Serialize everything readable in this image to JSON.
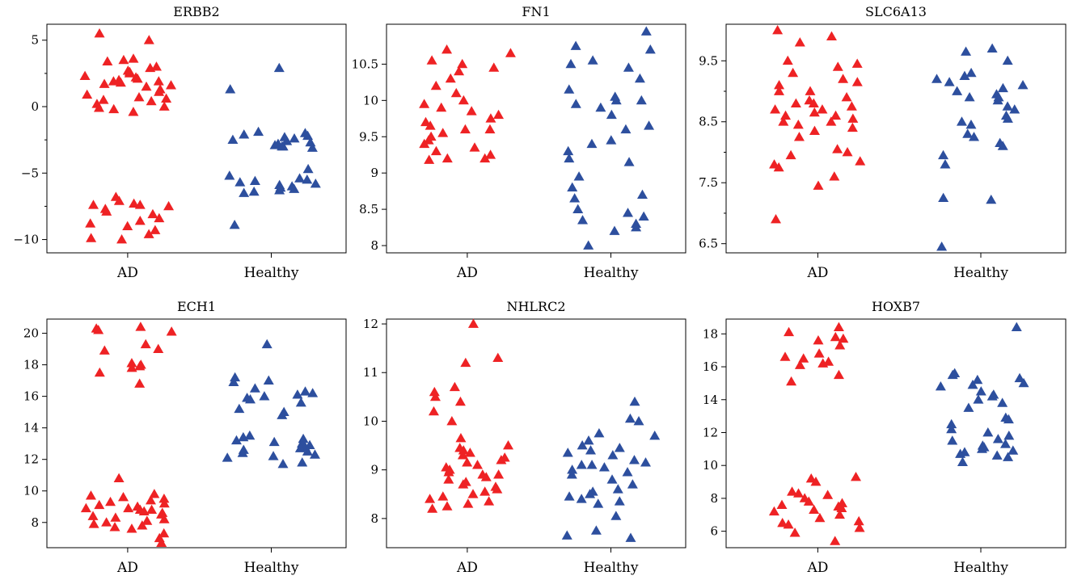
{
  "colors": {
    "AD": "#ee2224",
    "Healthy": "#2d4f9e"
  },
  "chart_data": [
    {
      "type": "scatter",
      "title": "ERBB2",
      "categories": [
        "AD",
        "Healthy"
      ],
      "yticks": [
        -10,
        -5,
        0,
        5
      ],
      "ylim": [
        -11,
        6.2
      ],
      "minor_ticks": true,
      "series": [
        {
          "category": "AD",
          "values": [
            5.5,
            5.0,
            3.6,
            3.5,
            3.4,
            3.0,
            2.9,
            2.7,
            2.6,
            2.5,
            2.3,
            2.2,
            2.1,
            2.0,
            1.9,
            1.9,
            1.8,
            1.7,
            1.6,
            1.5,
            1.3,
            1.1,
            0.9,
            0.7,
            0.6,
            0.5,
            0.4,
            0.2,
            0.0,
            -0.1,
            -0.2,
            -0.4,
            -6.8,
            -7.1,
            -7.3,
            -7.4,
            -7.4,
            -7.5,
            -7.7,
            -7.9,
            -8.1,
            -8.4,
            -8.6,
            -8.8,
            -9.0,
            -9.3,
            -9.6,
            -9.9,
            -10.0
          ]
        },
        {
          "category": "Healthy",
          "values": [
            2.9,
            1.3,
            -1.9,
            -2.0,
            -2.1,
            -2.2,
            -2.3,
            -2.4,
            -2.5,
            -2.6,
            -2.7,
            -2.8,
            -2.9,
            -3.0,
            -3.0,
            -3.1,
            -4.7,
            -5.2,
            -5.4,
            -5.5,
            -5.6,
            -5.7,
            -5.8,
            -5.9,
            -6.0,
            -6.1,
            -6.2,
            -6.3,
            -6.4,
            -6.5,
            -8.9
          ]
        }
      ]
    },
    {
      "type": "scatter",
      "title": "FN1",
      "categories": [
        "AD",
        "Healthy"
      ],
      "yticks": [
        8.0,
        8.5,
        9.0,
        9.5,
        10.0,
        10.5
      ],
      "ylim": [
        7.9,
        11.05
      ],
      "minor_ticks": false,
      "series": [
        {
          "category": "AD",
          "values": [
            10.7,
            10.65,
            10.55,
            10.5,
            10.45,
            10.4,
            10.3,
            10.2,
            10.1,
            10.0,
            9.95,
            9.9,
            9.85,
            9.8,
            9.75,
            9.7,
            9.65,
            9.6,
            9.6,
            9.55,
            9.5,
            9.45,
            9.4,
            9.35,
            9.3,
            9.25,
            9.2,
            9.2,
            9.18
          ]
        },
        {
          "category": "Healthy",
          "values": [
            10.95,
            10.75,
            10.7,
            10.55,
            10.5,
            10.45,
            10.3,
            10.15,
            10.05,
            10.0,
            10.0,
            9.95,
            9.9,
            9.8,
            9.65,
            9.6,
            9.45,
            9.4,
            9.3,
            9.2,
            9.15,
            8.95,
            8.8,
            8.7,
            8.65,
            8.5,
            8.45,
            8.4,
            8.35,
            8.3,
            8.25,
            8.2,
            8.0
          ]
        }
      ]
    },
    {
      "type": "scatter",
      "title": "SLC6A13",
      "categories": [
        "AD",
        "Healthy"
      ],
      "yticks": [
        6.5,
        7.5,
        8.5,
        9.5
      ],
      "ylim": [
        6.35,
        10.1
      ],
      "minor_ticks": true,
      "series": [
        {
          "category": "AD",
          "values": [
            10.0,
            9.9,
            9.8,
            9.5,
            9.45,
            9.4,
            9.3,
            9.2,
            9.15,
            9.1,
            9.0,
            9.0,
            8.9,
            8.85,
            8.8,
            8.8,
            8.75,
            8.7,
            8.7,
            8.65,
            8.6,
            8.6,
            8.55,
            8.5,
            8.5,
            8.45,
            8.4,
            8.35,
            8.25,
            8.05,
            8.0,
            7.95,
            7.85,
            7.8,
            7.75,
            7.6,
            7.45,
            6.9
          ]
        },
        {
          "category": "Healthy",
          "values": [
            9.7,
            9.65,
            9.5,
            9.3,
            9.25,
            9.2,
            9.15,
            9.1,
            9.05,
            9.0,
            8.95,
            8.9,
            8.9,
            8.85,
            8.75,
            8.7,
            8.6,
            8.55,
            8.5,
            8.45,
            8.3,
            8.25,
            8.15,
            8.1,
            7.95,
            7.8,
            7.25,
            7.22,
            6.45
          ]
        }
      ]
    },
    {
      "type": "scatter",
      "title": "ECH1",
      "categories": [
        "AD",
        "Healthy"
      ],
      "yticks": [
        8,
        10,
        12,
        14,
        16,
        18,
        20
      ],
      "ylim": [
        6.4,
        20.9
      ],
      "minor_ticks": false,
      "series": [
        {
          "category": "AD",
          "values": [
            20.4,
            20.3,
            20.2,
            20.1,
            19.3,
            19.0,
            18.9,
            18.1,
            18.0,
            17.9,
            17.8,
            17.5,
            16.8,
            10.8,
            9.8,
            9.7,
            9.6,
            9.5,
            9.4,
            9.3,
            9.2,
            9.1,
            9.0,
            8.9,
            8.9,
            8.8,
            8.8,
            8.7,
            8.6,
            8.5,
            8.4,
            8.3,
            8.2,
            8.1,
            8.0,
            7.9,
            7.8,
            7.7,
            7.6,
            7.3,
            7.0,
            6.7
          ]
        },
        {
          "category": "Healthy",
          "values": [
            19.3,
            17.2,
            17.0,
            16.9,
            16.5,
            16.3,
            16.2,
            16.1,
            16.0,
            15.9,
            15.8,
            15.6,
            15.2,
            15.0,
            14.8,
            13.5,
            13.4,
            13.3,
            13.2,
            13.1,
            13.0,
            12.9,
            12.8,
            12.7,
            12.6,
            12.5,
            12.4,
            12.3,
            12.2,
            12.1,
            11.8,
            11.7
          ]
        }
      ]
    },
    {
      "type": "scatter",
      "title": "NHLRC2",
      "categories": [
        "AD",
        "Healthy"
      ],
      "yticks": [
        8,
        9,
        10,
        11,
        12
      ],
      "ylim": [
        7.4,
        12.1
      ],
      "minor_ticks": false,
      "series": [
        {
          "category": "AD",
          "values": [
            12.0,
            11.3,
            11.2,
            10.7,
            10.6,
            10.5,
            10.4,
            10.2,
            10.0,
            9.65,
            9.5,
            9.45,
            9.4,
            9.35,
            9.3,
            9.25,
            9.2,
            9.15,
            9.1,
            9.05,
            9.0,
            8.95,
            8.9,
            8.9,
            8.85,
            8.8,
            8.75,
            8.7,
            8.65,
            8.6,
            8.55,
            8.5,
            8.45,
            8.4,
            8.35,
            8.3,
            8.25,
            8.2
          ]
        },
        {
          "category": "Healthy",
          "values": [
            10.4,
            10.05,
            10.0,
            9.75,
            9.7,
            9.6,
            9.5,
            9.45,
            9.4,
            9.35,
            9.3,
            9.2,
            9.15,
            9.1,
            9.1,
            9.05,
            9.0,
            8.95,
            8.9,
            8.8,
            8.7,
            8.6,
            8.55,
            8.5,
            8.45,
            8.4,
            8.35,
            8.3,
            8.05,
            7.75,
            7.65,
            7.6
          ]
        }
      ]
    },
    {
      "type": "scatter",
      "title": "HOXB7",
      "categories": [
        "AD",
        "Healthy"
      ],
      "yticks": [
        6,
        8,
        10,
        12,
        14,
        16,
        18
      ],
      "ylim": [
        5.0,
        18.9
      ],
      "minor_ticks": false,
      "series": [
        {
          "category": "AD",
          "values": [
            18.4,
            18.1,
            17.8,
            17.7,
            17.6,
            17.3,
            16.8,
            16.6,
            16.5,
            16.3,
            16.2,
            16.1,
            15.5,
            15.1,
            9.3,
            9.2,
            9.0,
            8.4,
            8.3,
            8.2,
            8.0,
            7.8,
            7.7,
            7.6,
            7.5,
            7.4,
            7.3,
            7.2,
            7.0,
            6.8,
            6.6,
            6.5,
            6.4,
            6.2,
            5.9,
            5.4
          ]
        },
        {
          "category": "Healthy",
          "values": [
            18.4,
            15.6,
            15.5,
            15.3,
            15.2,
            15.0,
            14.9,
            14.8,
            14.5,
            14.3,
            14.2,
            14.0,
            13.8,
            13.5,
            12.9,
            12.8,
            12.5,
            12.2,
            12.0,
            11.8,
            11.6,
            11.5,
            11.3,
            11.2,
            11.1,
            11.0,
            10.9,
            10.8,
            10.7,
            10.6,
            10.5,
            10.2
          ]
        }
      ]
    }
  ]
}
